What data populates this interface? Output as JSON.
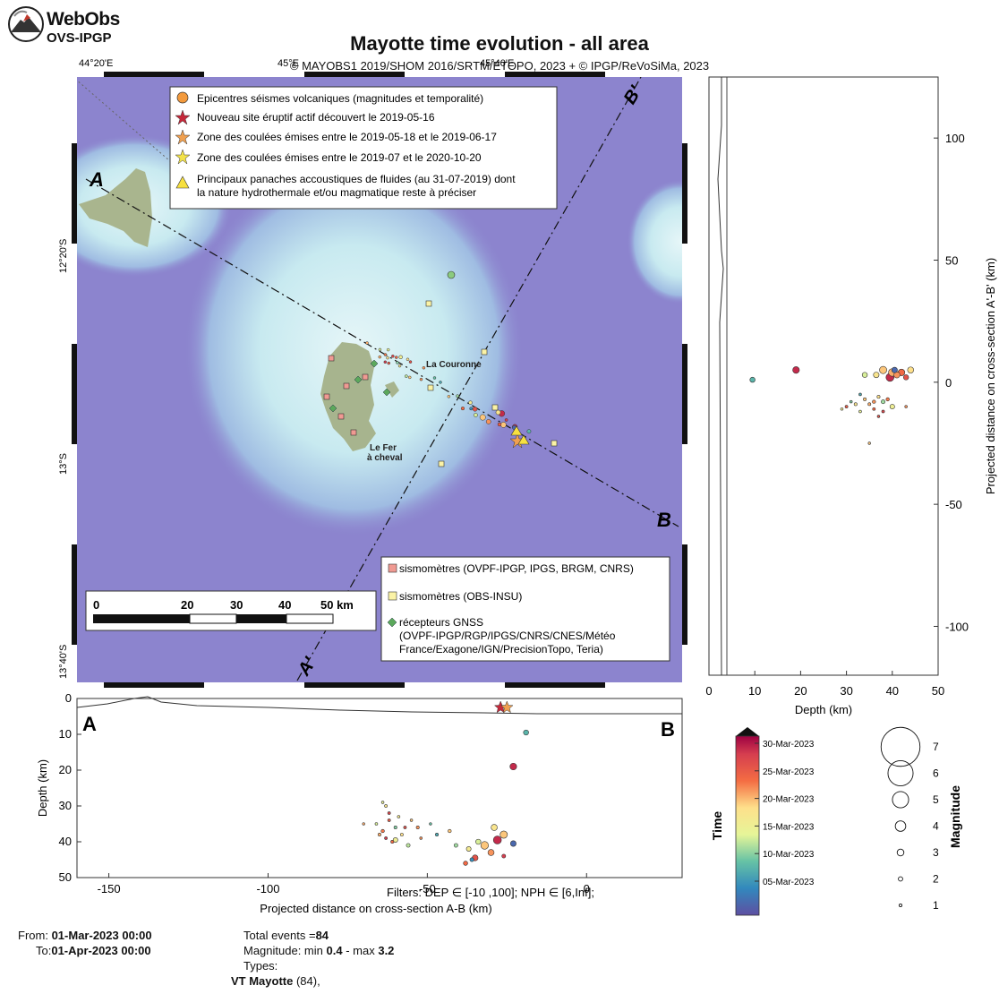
{
  "logo": {
    "line1": "WebObs",
    "line2": "OVS-IPGP"
  },
  "title": "Mayotte time evolution - all area",
  "subtitle": "© MAYOBS1 2019/SHOM 2016/SRTM/ETOPO, 2023 + © IPGP/ReVoSiMa, 2023",
  "map": {
    "top_ticks": [
      "44°20'E",
      "45°E",
      "45°40'E"
    ],
    "left_ticks": [
      "12°20'S",
      "13°S",
      "13°40'S"
    ],
    "legend": [
      "Epicentres séismes volcaniques (magnitudes et temporalité)",
      "Nouveau site éruptif actif découvert le 2019-05-16",
      "Zone des coulées émises entre le 2019-05-18 et le 2019-06-17",
      "Zone des coulées émises entre le 2019-07 et le 2020-10-20",
      "Principaux panaches accoustiques de fluides (au 31-07-2019) dont",
      "la nature hydrothermale et/ou magmatique reste à préciser"
    ],
    "stations_legend": [
      "sismomètres (OVPF-IPGP, IPGS, BRGM, CNRS)",
      "sismomètres (OBS-INSU)",
      "récepteurs GNSS",
      "(OVPF-IPGP/RGP/IPGS/CNRS/CNES/Météo",
      "France/Exagone/IGN/PrecisionTopo, Teria)"
    ],
    "scale_labels": [
      "0",
      "20",
      "30",
      "40",
      "50 km"
    ],
    "place_labels": [
      "La Couronne",
      "Le Fer",
      "à cheval"
    ],
    "section_labels": {
      "A": "A",
      "B": "B",
      "A_prime": "A'",
      "B_prime": "B'"
    },
    "colors": {
      "sea": "#8C84CE",
      "shallow": "#D2EEF4",
      "land": "#A7B48E",
      "seismometer": "#F09A92",
      "obs": "#FBF3A6",
      "gnss": "#5BA85B"
    }
  },
  "chart_data": [
    {
      "type": "scatter",
      "name": "cross-section A-B",
      "xlabel": "Projected distance on cross-section A-B (km)",
      "ylabel": "Depth (km)",
      "xlim": [
        -160,
        30
      ],
      "ylim": [
        0,
        50
      ],
      "xticks": [
        "-150",
        "-100",
        "-50",
        "0"
      ],
      "yticks": [
        "0",
        "10",
        "20",
        "30",
        "40",
        "50"
      ],
      "end_labels": {
        "left": "A",
        "right": "B"
      },
      "filters_text": "Filters:  DEP ∈ [-10 ,100];  NPH ∈ [6,Inf];",
      "points": [
        {
          "x": -27,
          "y": 2.5,
          "mag": 2,
          "day": 25
        },
        {
          "x": -19,
          "y": 9.5,
          "mag": 2.2,
          "day": 9
        },
        {
          "x": -23,
          "y": 19,
          "mag": 2.8,
          "day": 29
        },
        {
          "x": -23,
          "y": 40.5,
          "mag": 2.4,
          "day": 3
        },
        {
          "x": -26,
          "y": 38,
          "mag": 3.0,
          "day": 20
        },
        {
          "x": -29,
          "y": 36,
          "mag": 2.6,
          "day": 18
        },
        {
          "x": -28,
          "y": 39.5,
          "mag": 3.2,
          "day": 29
        },
        {
          "x": -32,
          "y": 41,
          "mag": 3.1,
          "day": 20
        },
        {
          "x": -30,
          "y": 43,
          "mag": 2.6,
          "day": 22
        },
        {
          "x": -35,
          "y": 44.5,
          "mag": 2.5,
          "day": 26
        },
        {
          "x": -34,
          "y": 40,
          "mag": 2.2,
          "day": 14
        },
        {
          "x": -37,
          "y": 42,
          "mag": 2.0,
          "day": 17
        },
        {
          "x": -38,
          "y": 46,
          "mag": 1.8,
          "day": 24
        },
        {
          "x": -41,
          "y": 41,
          "mag": 1.5,
          "day": 12
        },
        {
          "x": -43,
          "y": 37,
          "mag": 1.2,
          "day": 20
        },
        {
          "x": -47,
          "y": 38,
          "mag": 1.0,
          "day": 8
        },
        {
          "x": -36,
          "y": 45,
          "mag": 1.6,
          "day": 6
        },
        {
          "x": -26,
          "y": 44,
          "mag": 1.5,
          "day": 28
        },
        {
          "x": -60,
          "y": 39.5,
          "mag": 2.0,
          "day": 16
        },
        {
          "x": -56,
          "y": 41,
          "mag": 1.5,
          "day": 13
        },
        {
          "x": -53,
          "y": 36,
          "mag": 1.0,
          "day": 22
        },
        {
          "x": -65,
          "y": 38,
          "mag": 1.0,
          "day": 21
        },
        {
          "x": -62,
          "y": 34,
          "mag": 0.8,
          "day": 25
        },
        {
          "x": -63,
          "y": 30,
          "mag": 0.8,
          "day": 18
        },
        {
          "x": -64,
          "y": 29,
          "mag": 0.6,
          "day": 15
        },
        {
          "x": -62,
          "y": 32,
          "mag": 0.8,
          "day": 27
        },
        {
          "x": -60,
          "y": 36,
          "mag": 1.0,
          "day": 11
        },
        {
          "x": -58,
          "y": 38,
          "mag": 0.9,
          "day": 19
        },
        {
          "x": -64,
          "y": 37,
          "mag": 1.2,
          "day": 23
        },
        {
          "x": -61,
          "y": 40,
          "mag": 1.0,
          "day": 24
        },
        {
          "x": -59,
          "y": 33,
          "mag": 0.7,
          "day": 17
        },
        {
          "x": -57,
          "y": 36,
          "mag": 0.8,
          "day": 26
        },
        {
          "x": -66,
          "y": 35,
          "mag": 0.7,
          "day": 14
        },
        {
          "x": -55,
          "y": 34,
          "mag": 0.6,
          "day": 20
        },
        {
          "x": -63,
          "y": 39,
          "mag": 0.8,
          "day": 28
        },
        {
          "x": -70,
          "y": 35,
          "mag": 0.5,
          "day": 21
        },
        {
          "x": -49,
          "y": 35,
          "mag": 0.5,
          "day": 10
        },
        {
          "x": -52,
          "y": 39,
          "mag": 0.6,
          "day": 22
        }
      ],
      "markers": [
        {
          "type": "eruptive-site",
          "x": -27,
          "y": 2.5
        },
        {
          "type": "lava-flow",
          "x": -25,
          "y": 2.5
        }
      ]
    },
    {
      "type": "scatter",
      "name": "cross-section A'-B'",
      "xlabel": "Depth (km)",
      "ylabel": "Projected distance on cross-section A'-B' (km)",
      "xlim": [
        0,
        50
      ],
      "ylim": [
        -120,
        125
      ],
      "xticks": [
        "0",
        "10",
        "20",
        "30",
        "40",
        "50"
      ],
      "yticks": [
        "100",
        "50",
        "0",
        "-50",
        "-100"
      ],
      "points": [
        {
          "x": 9.5,
          "y": 1,
          "mag": 2.2,
          "day": 9
        },
        {
          "x": 19,
          "y": 5,
          "mag": 2.8,
          "day": 29
        },
        {
          "x": 40.5,
          "y": 5,
          "mag": 2.4,
          "day": 3
        },
        {
          "x": 38,
          "y": 5,
          "mag": 3.0,
          "day": 20
        },
        {
          "x": 40,
          "y": 4,
          "mag": 3.1,
          "day": 21
        },
        {
          "x": 42,
          "y": 4,
          "mag": 2.8,
          "day": 24
        },
        {
          "x": 44,
          "y": 5,
          "mag": 2.6,
          "day": 19
        },
        {
          "x": 39.5,
          "y": 2,
          "mag": 3.2,
          "day": 29
        },
        {
          "x": 41,
          "y": 3,
          "mag": 2.6,
          "day": 22
        },
        {
          "x": 43,
          "y": 2,
          "mag": 2.2,
          "day": 26
        },
        {
          "x": 36.5,
          "y": 3,
          "mag": 2.4,
          "day": 18
        },
        {
          "x": 34,
          "y": 3,
          "mag": 2.2,
          "day": 14
        },
        {
          "x": 40,
          "y": -10,
          "mag": 2.0,
          "day": 16
        },
        {
          "x": 38,
          "y": -8,
          "mag": 1.6,
          "day": 12
        },
        {
          "x": 36,
          "y": -8,
          "mag": 1.2,
          "day": 22
        },
        {
          "x": 30,
          "y": -10,
          "mag": 0.8,
          "day": 25
        },
        {
          "x": 32,
          "y": -9,
          "mag": 1.0,
          "day": 18
        },
        {
          "x": 34,
          "y": -7,
          "mag": 1.0,
          "day": 20
        },
        {
          "x": 36,
          "y": -11,
          "mag": 0.8,
          "day": 24
        },
        {
          "x": 38,
          "y": -12,
          "mag": 0.8,
          "day": 27
        },
        {
          "x": 33,
          "y": -12,
          "mag": 0.7,
          "day": 15
        },
        {
          "x": 35,
          "y": -9,
          "mag": 0.9,
          "day": 21
        },
        {
          "x": 37,
          "y": -6,
          "mag": 1.0,
          "day": 19
        },
        {
          "x": 39,
          "y": -7,
          "mag": 1.2,
          "day": 23
        },
        {
          "x": 31,
          "y": -8,
          "mag": 0.6,
          "day": 11
        },
        {
          "x": 29,
          "y": -11,
          "mag": 0.6,
          "day": 17
        },
        {
          "x": 35,
          "y": -25,
          "mag": 0.5,
          "day": 20
        },
        {
          "x": 43,
          "y": -10,
          "mag": 0.6,
          "day": 22
        },
        {
          "x": 37,
          "y": -14,
          "mag": 0.6,
          "day": 26
        },
        {
          "x": 33,
          "y": -5,
          "mag": 0.7,
          "day": 8
        }
      ]
    }
  ],
  "colorbar": {
    "title": "Time",
    "labels": [
      "30-Mar-2023",
      "25-Mar-2023",
      "20-Mar-2023",
      "15-Mar-2023",
      "10-Mar-2023",
      "05-Mar-2023"
    ]
  },
  "magnitude_scale": {
    "title": "Magnitude",
    "labels": [
      "7",
      "6",
      "5",
      "4",
      "3",
      "2",
      "1"
    ]
  },
  "footer": {
    "from_label": "From:",
    "from_value": "01-Mar-2023 00:00",
    "to_label": "To:",
    "to_value": "01-Apr-2023 00:00",
    "total_label": "Total events =",
    "total_value": "84",
    "magnitude_label": "Magnitude: min",
    "mag_min": "0.4",
    "mag_sep": "- max",
    "mag_max": "3.2",
    "types_label": "Types:",
    "type_name": "VT Mayotte",
    "type_count": "(84),"
  }
}
